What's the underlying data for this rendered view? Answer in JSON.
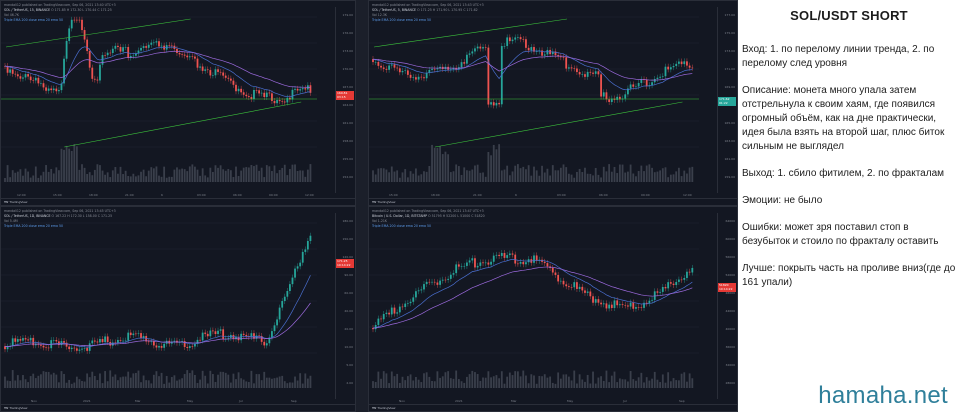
{
  "panels": [
    {
      "header_line1": "mandali12 published on TradingView.com, Sep 06, 2021 13:40 UTC+3",
      "symbol": "SOL / TetherUS, 15, BINANCE",
      "ohlc": "O 171.85  H 172.30  L 170.44  C 171.25",
      "vol": "Vol 46.7K",
      "indicators": "Triple EMA 200 close  ema 20  ema 50",
      "price_label": "169.81",
      "price_sub": "03:15",
      "y_ticks": [
        "179.00",
        "176.00",
        "173.00",
        "170.00",
        "167.00",
        "164.00",
        "161.00",
        "158.00",
        "155.00",
        "152.00"
      ],
      "x_ticks": [
        "12:00",
        "15:00",
        "18:00",
        "21:00",
        "6",
        "03:00",
        "06:00",
        "09:00",
        "12:00"
      ],
      "footer": "TradingView"
    },
    {
      "header_line1": "mandali12 published on TradingView.com, Sep 06, 2021 13:43 UTC+3",
      "symbol": "SOL / TetherUS, 5, BINANCE",
      "ohlc": "O 171.25  H 171.90  L 170.95  C 171.62",
      "vol": "Vol 12.3K",
      "indicators": "Triple EMA 200 close  ema 20  ema 50",
      "price_label": "171.62",
      "price_sub": "01:22",
      "y_ticks": [
        "177.00",
        "175.00",
        "173.00",
        "171.00",
        "169.00",
        "167.00",
        "165.00",
        "163.00",
        "161.00",
        "159.00"
      ],
      "x_ticks": [
        "15:00",
        "18:00",
        "21:00",
        "6",
        "03:00",
        "06:00",
        "09:00",
        "12:00"
      ],
      "footer": "TradingView"
    },
    {
      "header_line1": "mandali12 published on TradingView.com, Sep 06, 2021 13:45 UTC+3",
      "symbol": "SOL / TetherUS, 1D, BINANCE",
      "ohlc": "O 167.22  H 172.30  L 158.00  C 171.25",
      "vol": "Vol 5.4M",
      "indicators": "Triple EMA 200 close  ema 20  ema 50",
      "price_label": "171.25",
      "price_sub": "10:14:22",
      "y_ticks": [
        "180.00",
        "150.00",
        "120.00",
        "90.00",
        "60.00",
        "40.00",
        "20.00",
        "10.00",
        "5.00",
        "2.00"
      ],
      "x_ticks": [
        "Nov",
        "2021",
        "Mar",
        "May",
        "Jul",
        "Sep"
      ],
      "footer": "TradingView"
    },
    {
      "header_line1": "mandali12 published on TradingView.com, Sep 06, 2021 13:47 UTC+3",
      "symbol": "Bitcoin / U.S. Dollar, 1D, BITSTAMP",
      "ohlc": "O 51795  H 52200  L 51000  C 51820",
      "vol": "Vol 1.21K",
      "indicators": "Triple EMA 200 close  ema 20  ema 50",
      "price_label": "51820",
      "price_sub": "10:14:22",
      "y_ticks": [
        "64000",
        "60000",
        "56000",
        "52000",
        "48000",
        "44000",
        "40000",
        "36000",
        "32000",
        "28000"
      ],
      "x_ticks": [
        "Nov",
        "2021",
        "Mar",
        "May",
        "Jul",
        "Sep"
      ],
      "footer": "TradingView"
    }
  ],
  "notes": {
    "title": "SOL/USDT SHORT",
    "entry": "Вход: 1. по перелому линии тренда, 2. по перелому след уровня",
    "description": "Описание: монета много упала затем отстрельнула к своим хаям, где появился огромный объём, как на дне практически, идея была взять на второй шаг, плюс биток сильным не выглядел",
    "exit": "Выход: 1. сбило фитилем, 2. по фракталам",
    "emotions": "Эмоции: не было",
    "mistakes": "Ошибки: может зря поставил стоп в безубыток и стоило по фракталу оставить",
    "better": "Лучше: покрыть часть на проливе вниз(где до 161 упали)"
  },
  "watermark": "hamaha.net",
  "colors": {
    "panel_bg": "#131722",
    "candle_up": "#26a69a",
    "candle_down": "#ef5350",
    "trend_line": "#3cc43c",
    "ema_blue": "#4a6fd0",
    "ema_violet": "#9c6ade",
    "price_tag": "#e53935",
    "watermark": "#2f7f9a"
  }
}
